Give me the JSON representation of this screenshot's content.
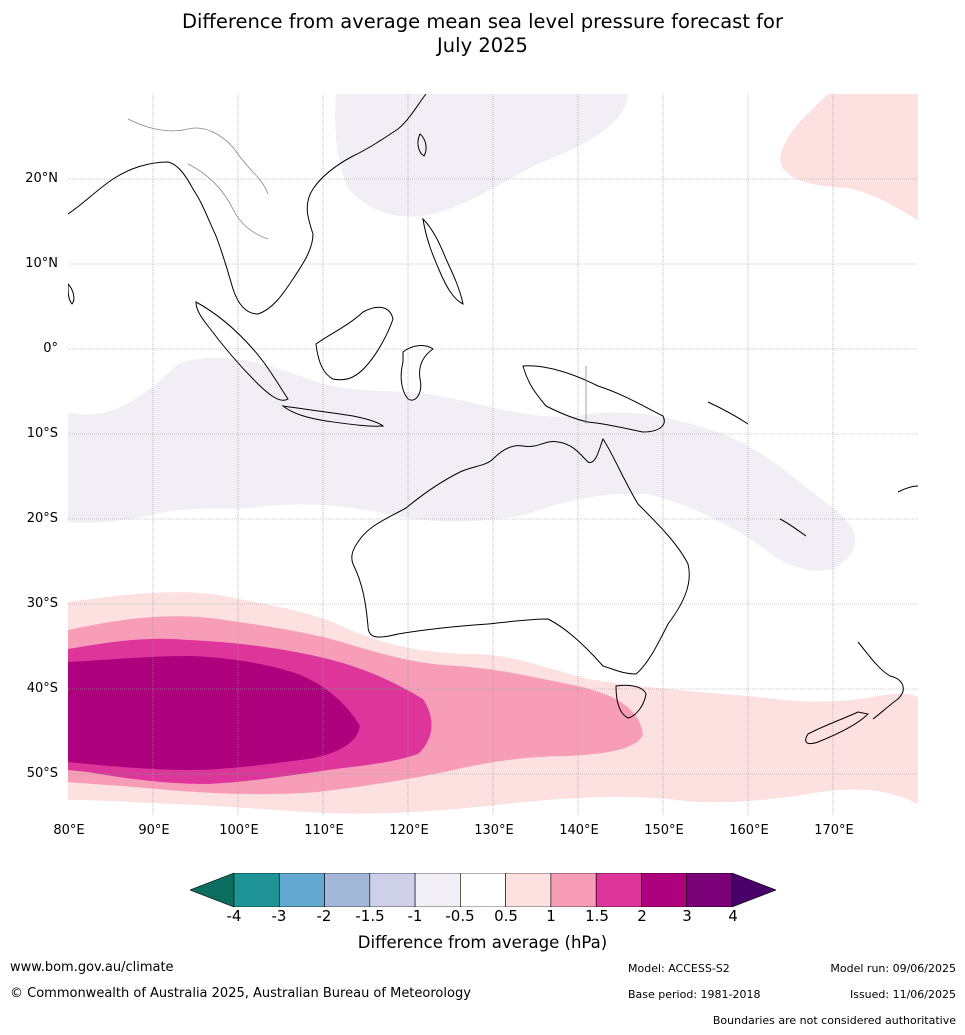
{
  "title_line1": "Difference from average mean sea level pressure forecast for",
  "title_line2": "July 2025",
  "lat_labels": [
    "20°N",
    "10°N",
    "0°",
    "10°S",
    "20°S",
    "30°S",
    "40°S",
    "50°S"
  ],
  "lon_labels": [
    "80°E",
    "90°E",
    "100°E",
    "110°E",
    "120°E",
    "130°E",
    "140°E",
    "150°E",
    "160°E",
    "170°E"
  ],
  "colorbar": {
    "labels": [
      "-4",
      "-3",
      "-2",
      "-1.5",
      "-1",
      "-0.5",
      "0.5",
      "1",
      "1.5",
      "2",
      "3",
      "4"
    ],
    "colors": [
      "#0b6e60",
      "#1f9496",
      "#63a8cf",
      "#a3b7d9",
      "#cdd0e6",
      "#f2eef6",
      "#ffffff",
      "#fde0e0",
      "#f89db7",
      "#dd3599",
      "#ae017e",
      "#7a0177",
      "#49006a"
    ],
    "title": "Difference from average (hPa)"
  },
  "footer": {
    "url": "www.bom.gov.au/climate",
    "copyright": "© Commonwealth of Australia 2025, Australian Bureau of Meteorology",
    "model": "Model: ACCESS-S2",
    "base_period": "Base period: 1981-2018",
    "model_run": "Model run: 09/06/2025",
    "issued": "Issued: 11/06/2025",
    "disclaimer": "Boundaries are not considered authoritative"
  }
}
